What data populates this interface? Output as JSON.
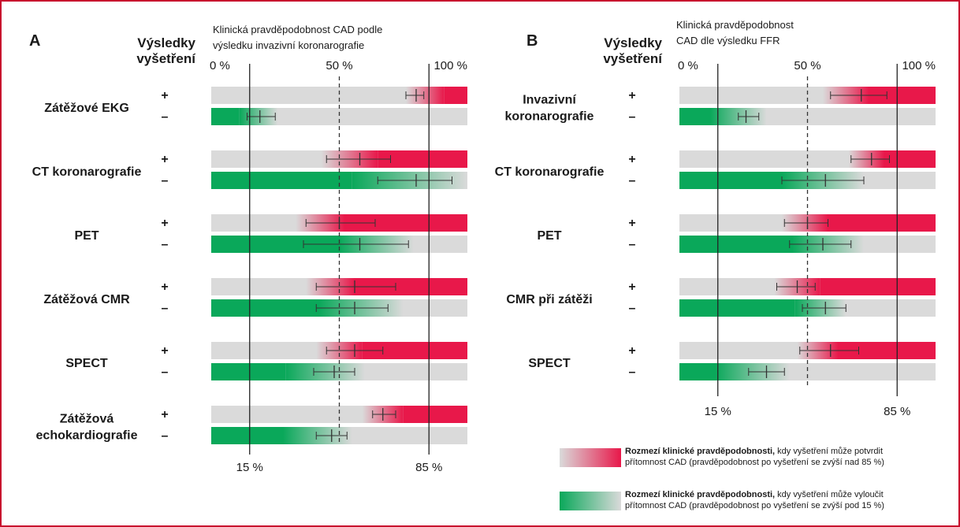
{
  "panels": [
    {
      "letter": "A",
      "results_header": [
        "Výsledky",
        "vyšetření"
      ],
      "caption": [
        "Klinická pravděpodobnost CAD podle",
        "výsledku invazivní koronarografie"
      ],
      "top_ticks": [
        "0 %",
        "50 %",
        "100 %"
      ],
      "bottom_ticks": [
        "15 %",
        "85 %"
      ],
      "tests": [
        {
          "name": [
            "Zátěžové EKG"
          ],
          "pos": {
            "sign": "+",
            "fade_start": 76,
            "fade_end": 91,
            "point": 80,
            "low": 76,
            "high": 83
          },
          "neg": {
            "sign": "–",
            "fade_start": 11,
            "fade_end": 26,
            "point": 19,
            "low": 14,
            "high": 25
          }
        },
        {
          "name": [
            "CT koronarografie"
          ],
          "pos": {
            "sign": "+",
            "fade_start": 43,
            "fade_end": 65,
            "point": 58,
            "low": 45,
            "high": 70
          },
          "neg": {
            "sign": "–",
            "fade_start": 55,
            "fade_end": 100,
            "point": 80,
            "low": 65,
            "high": 94
          }
        },
        {
          "name": [
            "PET"
          ],
          "pos": {
            "sign": "+",
            "fade_start": 33,
            "fade_end": 52,
            "point": 50,
            "low": 37,
            "high": 64
          },
          "neg": {
            "sign": "–",
            "fade_start": 50,
            "fade_end": 79,
            "point": 58,
            "low": 36,
            "high": 77
          }
        },
        {
          "name": [
            "Zátěžová CMR"
          ],
          "pos": {
            "sign": "+",
            "fade_start": 37,
            "fade_end": 56,
            "point": 56,
            "low": 41,
            "high": 72
          },
          "neg": {
            "sign": "–",
            "fade_start": 42,
            "fade_end": 75,
            "point": 56,
            "low": 41,
            "high": 69
          }
        },
        {
          "name": [
            "SPECT"
          ],
          "pos": {
            "sign": "+",
            "fade_start": 41,
            "fade_end": 59,
            "point": 56,
            "low": 45,
            "high": 67
          },
          "neg": {
            "sign": "–",
            "fade_start": 29,
            "fade_end": 60,
            "point": 48,
            "low": 40,
            "high": 56
          }
        },
        {
          "name": [
            "Zátěžová",
            "echokardiografie"
          ],
          "pos": {
            "sign": "+",
            "fade_start": 59,
            "fade_end": 75,
            "point": 67,
            "low": 63,
            "high": 72
          },
          "neg": {
            "sign": "–",
            "fade_start": 28,
            "fade_end": 55,
            "point": 47,
            "low": 41,
            "high": 53
          }
        }
      ]
    },
    {
      "letter": "B",
      "results_header": [
        "Výsledky",
        "vyšetření"
      ],
      "caption": [
        "Klinická pravděpodobnost",
        "CAD dle výsledku FFR"
      ],
      "top_ticks": [
        "0 %",
        "50 %",
        "100 %"
      ],
      "bottom_ticks": [
        "15 %",
        "85 %"
      ],
      "tests": [
        {
          "name": [
            "Invazivní",
            "koronarografie"
          ],
          "pos": {
            "sign": "+",
            "fade_start": 56,
            "fade_end": 74,
            "point": 71,
            "low": 59,
            "high": 81
          },
          "neg": {
            "sign": "–",
            "fade_start": 12,
            "fade_end": 34,
            "point": 26,
            "low": 23,
            "high": 31
          }
        },
        {
          "name": [
            "CT koronarografie"
          ],
          "pos": {
            "sign": "+",
            "fade_start": 66,
            "fade_end": 80,
            "point": 75,
            "low": 67,
            "high": 82
          },
          "neg": {
            "sign": "–",
            "fade_start": 40,
            "fade_end": 72,
            "point": 57,
            "low": 40,
            "high": 72
          }
        },
        {
          "name": [
            "PET"
          ],
          "pos": {
            "sign": "+",
            "fade_start": 40,
            "fade_end": 58,
            "point": 50,
            "low": 41,
            "high": 58
          },
          "neg": {
            "sign": "–",
            "fade_start": 44,
            "fade_end": 72,
            "point": 56,
            "low": 43,
            "high": 67
          }
        },
        {
          "name": [
            "CMR při zátěži"
          ],
          "pos": {
            "sign": "+",
            "fade_start": 37,
            "fade_end": 55,
            "point": 46,
            "low": 38,
            "high": 53
          },
          "neg": {
            "sign": "–",
            "fade_start": 45,
            "fade_end": 65,
            "point": 57,
            "low": 48,
            "high": 65
          }
        },
        {
          "name": [
            "SPECT"
          ],
          "pos": {
            "sign": "+",
            "fade_start": 46,
            "fade_end": 62,
            "point": 59,
            "low": 47,
            "high": 70
          },
          "neg": {
            "sign": "–",
            "fade_start": 14,
            "fade_end": 43,
            "point": 34,
            "low": 27,
            "high": 41
          }
        }
      ]
    }
  ],
  "legend": [
    {
      "bold": "Rozmezí klinické pravděpodobnosti,",
      "rest": " kdy vyšetření může potvrdit",
      "line2": "přítomnost CAD (pravděpodobnost po vyšetření se zvýší nad 85 %)"
    },
    {
      "bold": "Rozmezí klinické pravděpodobnosti,",
      "rest": " kdy vyšetření může vyloučit",
      "line2": "přítomnost CAD (pravděpodobnost po vyšetření se zvýší pod 15 %)"
    }
  ],
  "colors": {
    "red": "#e8184a",
    "green": "#0aa85a",
    "grey": "#dadada",
    "frame": "#c8102e"
  }
}
